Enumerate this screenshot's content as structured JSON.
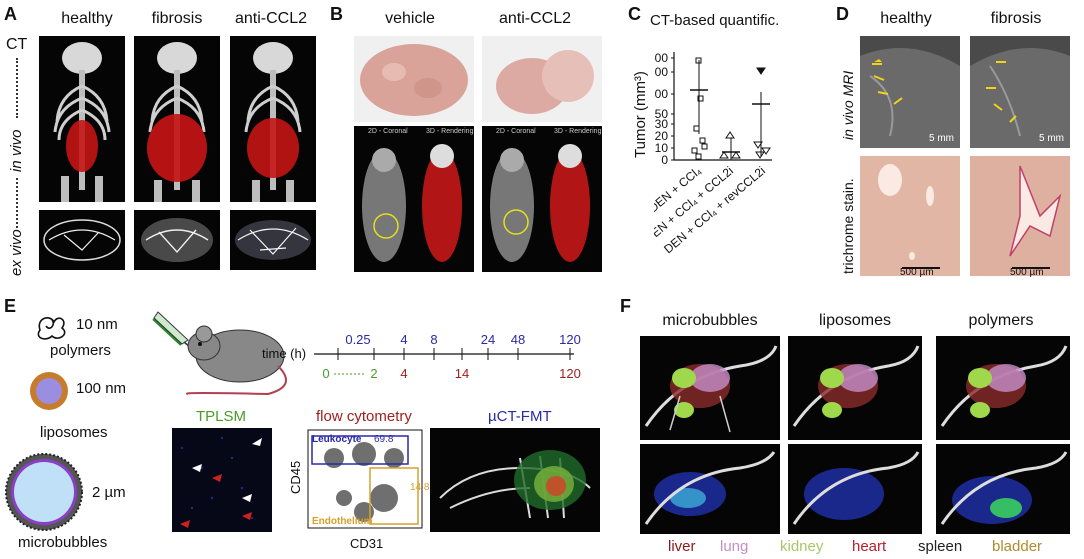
{
  "panels": {
    "A": {
      "letter": "A",
      "columns": [
        "healthy",
        "fibrosis",
        "anti-CCL2"
      ],
      "row_ct": "CT",
      "row_invivo": "in vivo",
      "row_exvivo": "ex vivo"
    },
    "B": {
      "letter": "B",
      "columns": [
        "vehicle",
        "anti-CCL2"
      ],
      "ct_captions": [
        "2D - Coronal",
        "3D - Rendering",
        "2D - Coronal",
        "3D - Rendering"
      ]
    },
    "C": {
      "letter": "C",
      "title": "CT-based quantific.",
      "ylabel": "Tumor (mm³)",
      "yticks": [
        "300",
        "200",
        "100",
        "50",
        "30",
        "20",
        "10",
        "0"
      ],
      "groups": [
        "DEN + CCl₄",
        "DEN + CCl₄ + CCL2i",
        "DEN + CCl₄ + revCCL2i"
      ]
    },
    "D": {
      "letter": "D",
      "columns": [
        "healthy",
        "fibrosis"
      ],
      "row_mri": "in vivo MRI",
      "row_stain": "trichrome stain.",
      "scale_mri": "5 mm",
      "scale_stain": "500 µm"
    },
    "E": {
      "letter": "E",
      "particles": [
        {
          "size": "10 nm",
          "name": "polymers"
        },
        {
          "size": "100 nm",
          "name": "liposomes"
        },
        {
          "size": "2 µm",
          "name": "microbubbles"
        }
      ],
      "timeline_label": "time (h)",
      "top_ticks": [
        "0.25",
        "4",
        "8",
        "24",
        "48",
        "120"
      ],
      "bottom_ticks_green": [
        "0",
        "2"
      ],
      "bottom_ticks_red": [
        "4",
        "14",
        "120"
      ],
      "methods": [
        "TPLSM",
        "flow cytometry",
        "µCT-FMT"
      ],
      "flow": {
        "gate1": "Leukocyte",
        "gate1_value": "69.8",
        "gate2": "Endothelium",
        "gate2_value": "14.8",
        "xaxis": "CD31",
        "yaxis": "CD45"
      }
    },
    "F": {
      "letter": "F",
      "columns": [
        "microbubbles",
        "liposomes",
        "polymers"
      ],
      "legend": [
        {
          "label": "liver",
          "color": "#8b1a1a"
        },
        {
          "label": "lung",
          "color": "#c58fc9"
        },
        {
          "label": "kidney",
          "color": "#a8c76a"
        },
        {
          "label": "heart",
          "color": "#b5212a"
        },
        {
          "label": "spleen",
          "color": "#222222"
        },
        {
          "label": "bladder",
          "color": "#b08a2e"
        }
      ]
    }
  }
}
